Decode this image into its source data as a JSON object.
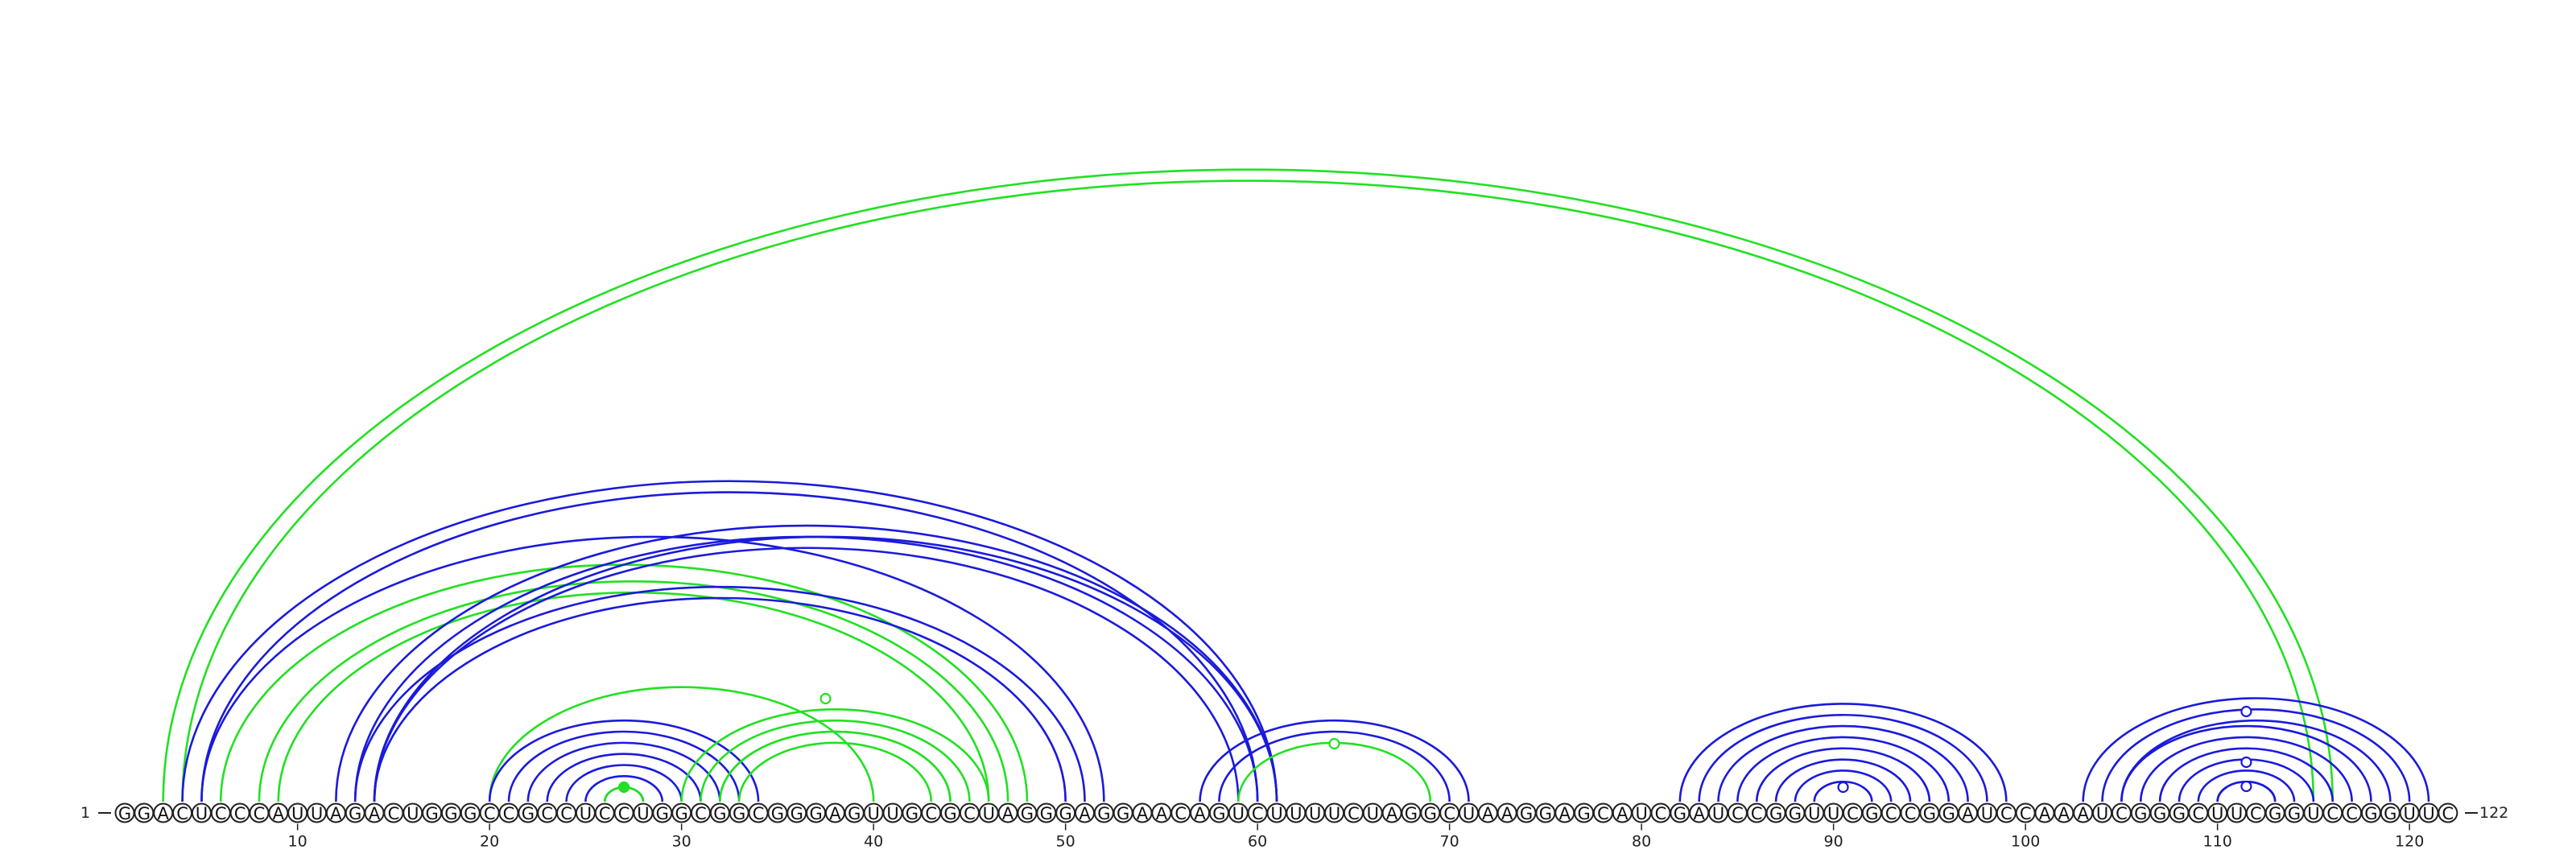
{
  "sequence": "GGACUCCCAUUAGACUGGGCCGCCUCCUGGCGGCGGGAGUUGCGCUAGGGAGGAACAGUCUUUUCUAGGCUAAGGAGCAUCGAUCCGGUUCGCCGGAUCCAAAUCGGGCUUCGGUCCGGUUC",
  "start_label": "1",
  "end_label": "122",
  "tick_positions": [
    10,
    20,
    30,
    40,
    50,
    60,
    70,
    80,
    90,
    100,
    110,
    120
  ],
  "colors": {
    "blue": "#1a1adc",
    "green": "#22e022",
    "ink": "#222222"
  },
  "helices": [
    {
      "name": "multiloop-long-range",
      "color": "green",
      "i": 3,
      "j": 116,
      "len": 2
    },
    {
      "name": "stem-4-61",
      "color": "blue",
      "i": 4,
      "j": 61,
      "len": 2
    },
    {
      "name": "stem-5-52",
      "color": "blue",
      "i": 5,
      "j": 52,
      "len": 1
    },
    {
      "name": "pk-6-48",
      "color": "green",
      "i": 6,
      "j": 48,
      "len": 1
    },
    {
      "name": "pk-8-47",
      "color": "green",
      "i": 8,
      "j": 47,
      "len": 2
    },
    {
      "name": "stem-12-61",
      "color": "blue",
      "i": 12,
      "j": 61,
      "len": 3
    },
    {
      "name": "stem-13-51",
      "color": "blue",
      "i": 13,
      "j": 51,
      "len": 2
    },
    {
      "name": "stem-14-61",
      "color": "blue",
      "i": 14,
      "j": 61,
      "len": 1
    },
    {
      "name": "pk-20-40",
      "color": "green",
      "i": 20,
      "j": 40,
      "len": 1
    },
    {
      "name": "hairpin-20-34",
      "color": "blue",
      "i": 20,
      "j": 34,
      "len": 7
    },
    {
      "name": "hairpin-26-28",
      "color": "green",
      "i": 26,
      "j": 28,
      "len": 1
    },
    {
      "name": "pk-30-46",
      "color": "green",
      "i": 30,
      "j": 46,
      "len": 1
    },
    {
      "name": "pk-31-45",
      "color": "green",
      "i": 31,
      "j": 45,
      "len": 2
    },
    {
      "name": "pk-32-44",
      "color": "green",
      "i": 32,
      "j": 44,
      "len": 2
    },
    {
      "name": "hairpin-57-71",
      "color": "blue",
      "i": 57,
      "j": 71,
      "len": 2
    },
    {
      "name": "hairpin-59-69",
      "color": "green",
      "i": 59,
      "j": 69,
      "len": 1
    },
    {
      "name": "hairpin-82-99",
      "color": "blue",
      "i": 82,
      "j": 99,
      "len": 7
    },
    {
      "name": "hairpin-89-92",
      "color": "blue",
      "i": 89,
      "j": 92,
      "len": 1
    },
    {
      "name": "hairpin-103-121",
      "color": "blue",
      "i": 103,
      "j": 121,
      "len": 3
    },
    {
      "name": "hairpin-105-118",
      "color": "blue",
      "i": 105,
      "j": 118,
      "len": 6
    },
    {
      "name": "hairpin-110-113",
      "color": "blue",
      "i": 110,
      "j": 113,
      "len": 1
    }
  ],
  "loop_markers": [
    {
      "name": "loop-marker-27",
      "color": "green",
      "pos": 27,
      "filled": true
    },
    {
      "name": "loop-marker-37",
      "color": "green",
      "pos": 37.5,
      "filled": false
    },
    {
      "name": "loop-marker-64",
      "color": "green",
      "pos": 64,
      "filled": false
    },
    {
      "name": "loop-marker-90",
      "color": "blue",
      "pos": 90.5,
      "filled": false
    },
    {
      "name": "loop-marker-111a",
      "color": "blue",
      "pos": 111.5,
      "filled": false
    },
    {
      "name": "loop-marker-111b",
      "color": "blue",
      "pos": 111.5,
      "filled": false
    },
    {
      "name": "loop-marker-111c",
      "color": "blue",
      "pos": 111.5,
      "filled": false
    }
  ]
}
